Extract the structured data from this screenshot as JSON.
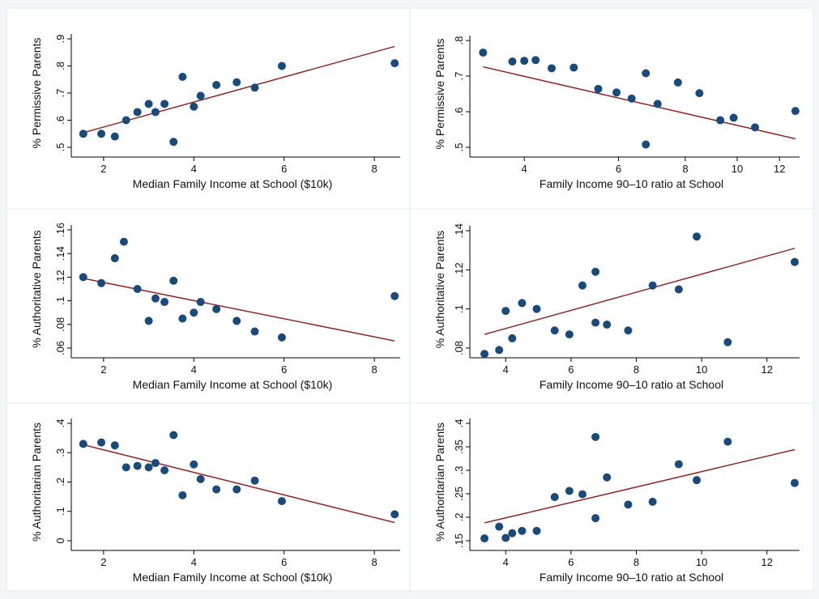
{
  "colors": {
    "point": "#1c4a78",
    "fit_line": "#8b1a1a",
    "background": "#f4f7fa",
    "panel": "#ffffff"
  },
  "chart_data": [
    {
      "type": "scatter",
      "title": "",
      "xlabel": "Median Family Income at School ($10k)",
      "ylabel": "% Permissive Parents",
      "xlim": [
        1.5,
        8.5
      ],
      "ylim": [
        0.5,
        0.9
      ],
      "xticks": [
        {
          "v": 2,
          "label": "2"
        },
        {
          "v": 4,
          "label": "4"
        },
        {
          "v": 6,
          "label": "6"
        },
        {
          "v": 8,
          "label": "8"
        }
      ],
      "yticks": [
        {
          "v": 0.5,
          "label": ".5"
        },
        {
          "v": 0.6,
          "label": ".6"
        },
        {
          "v": 0.7,
          "label": ".7"
        },
        {
          "v": 0.8,
          "label": ".8"
        },
        {
          "v": 0.9,
          "label": ".9"
        }
      ],
      "points": [
        [
          1.55,
          0.55
        ],
        [
          1.95,
          0.55
        ],
        [
          2.25,
          0.54
        ],
        [
          2.5,
          0.6
        ],
        [
          2.75,
          0.63
        ],
        [
          3.0,
          0.66
        ],
        [
          3.15,
          0.63
        ],
        [
          3.35,
          0.66
        ],
        [
          3.55,
          0.52
        ],
        [
          3.75,
          0.76
        ],
        [
          4.0,
          0.65
        ],
        [
          4.15,
          0.69
        ],
        [
          4.5,
          0.73
        ],
        [
          4.95,
          0.74
        ],
        [
          5.35,
          0.72
        ],
        [
          5.95,
          0.8
        ],
        [
          8.45,
          0.81
        ]
      ],
      "fit": [
        [
          1.55,
          0.554
        ],
        [
          8.45,
          0.872
        ]
      ],
      "grid": false,
      "legend": "none"
    },
    {
      "type": "scatter",
      "title": "",
      "xlabel": "Family Income 90–10 ratio at School",
      "ylabel": "% Permissive Parents",
      "xlim": [
        3.3,
        12.9
      ],
      "ylim": [
        0.5,
        0.8
      ],
      "xscale": "log",
      "xticks": [
        {
          "v": 4,
          "label": "4"
        },
        {
          "v": 6,
          "label": "6"
        },
        {
          "v": 8,
          "label": "8"
        },
        {
          "v": 10,
          "label": "10"
        },
        {
          "v": 12,
          "label": "12"
        }
      ],
      "yticks": [
        {
          "v": 0.5,
          "label": ".5"
        },
        {
          "v": 0.6,
          "label": ".6"
        },
        {
          "v": 0.7,
          "label": ".7"
        },
        {
          "v": 0.8,
          "label": ".8"
        }
      ],
      "points": [
        [
          3.35,
          0.766
        ],
        [
          3.8,
          0.741
        ],
        [
          4.0,
          0.743
        ],
        [
          4.2,
          0.745
        ],
        [
          4.5,
          0.722
        ],
        [
          4.95,
          0.724
        ],
        [
          5.5,
          0.664
        ],
        [
          5.95,
          0.654
        ],
        [
          6.35,
          0.637
        ],
        [
          6.75,
          0.708
        ],
        [
          6.75,
          0.508
        ],
        [
          7.1,
          0.622
        ],
        [
          7.75,
          0.682
        ],
        [
          8.5,
          0.652
        ],
        [
          9.3,
          0.576
        ],
        [
          9.85,
          0.583
        ],
        [
          10.8,
          0.556
        ],
        [
          12.85,
          0.602
        ]
      ],
      "fit": [
        [
          3.35,
          0.726
        ],
        [
          12.85,
          0.524
        ]
      ],
      "grid": false,
      "legend": "none"
    },
    {
      "type": "scatter",
      "title": "",
      "xlabel": "Median Family Income at School ($10k)",
      "ylabel": "% Authoritative Parents",
      "xlim": [
        1.5,
        8.5
      ],
      "ylim": [
        0.06,
        0.16
      ],
      "xticks": [
        {
          "v": 2,
          "label": "2"
        },
        {
          "v": 4,
          "label": "4"
        },
        {
          "v": 6,
          "label": "6"
        },
        {
          "v": 8,
          "label": "8"
        }
      ],
      "yticks": [
        {
          "v": 0.06,
          "label": ".06"
        },
        {
          "v": 0.08,
          "label": ".08"
        },
        {
          "v": 0.1,
          "label": ".1"
        },
        {
          "v": 0.12,
          "label": ".12"
        },
        {
          "v": 0.14,
          "label": ".14"
        },
        {
          "v": 0.16,
          "label": ".16"
        }
      ],
      "points": [
        [
          1.55,
          0.12
        ],
        [
          1.95,
          0.115
        ],
        [
          2.25,
          0.136
        ],
        [
          2.45,
          0.15
        ],
        [
          2.75,
          0.11
        ],
        [
          3.0,
          0.083
        ],
        [
          3.15,
          0.102
        ],
        [
          3.35,
          0.099
        ],
        [
          3.55,
          0.117
        ],
        [
          3.75,
          0.085
        ],
        [
          4.0,
          0.09
        ],
        [
          4.15,
          0.099
        ],
        [
          4.5,
          0.093
        ],
        [
          4.95,
          0.083
        ],
        [
          5.35,
          0.074
        ],
        [
          5.95,
          0.069
        ],
        [
          8.45,
          0.104
        ]
      ],
      "fit": [
        [
          1.55,
          0.119
        ],
        [
          8.45,
          0.066
        ]
      ],
      "grid": false,
      "legend": "none"
    },
    {
      "type": "scatter",
      "title": "",
      "xlabel": "Family Income 90–10 ratio at School",
      "ylabel": "% Authoritative Parents",
      "xlim": [
        3.2,
        12.9
      ],
      "ylim": [
        0.08,
        0.14
      ],
      "xticks": [
        {
          "v": 4,
          "label": "4"
        },
        {
          "v": 6,
          "label": "6"
        },
        {
          "v": 8,
          "label": "8"
        },
        {
          "v": 10,
          "label": "10"
        },
        {
          "v": 12,
          "label": "12"
        }
      ],
      "yticks": [
        {
          "v": 0.08,
          "label": ".08"
        },
        {
          "v": 0.1,
          "label": ".1"
        },
        {
          "v": 0.12,
          "label": ".12"
        },
        {
          "v": 0.14,
          "label": ".14"
        }
      ],
      "points": [
        [
          3.35,
          0.077
        ],
        [
          3.8,
          0.079
        ],
        [
          4.0,
          0.099
        ],
        [
          4.2,
          0.085
        ],
        [
          4.5,
          0.103
        ],
        [
          4.95,
          0.1
        ],
        [
          5.5,
          0.089
        ],
        [
          5.95,
          0.087
        ],
        [
          6.35,
          0.112
        ],
        [
          6.75,
          0.119
        ],
        [
          6.75,
          0.093
        ],
        [
          7.1,
          0.092
        ],
        [
          7.75,
          0.089
        ],
        [
          8.5,
          0.112
        ],
        [
          9.3,
          0.11
        ],
        [
          9.85,
          0.137
        ],
        [
          10.8,
          0.083
        ],
        [
          12.85,
          0.124
        ]
      ],
      "fit": [
        [
          3.35,
          0.087
        ],
        [
          12.85,
          0.131
        ]
      ],
      "grid": false,
      "legend": "none"
    },
    {
      "type": "scatter",
      "title": "",
      "xlabel": "Median Family Income at School ($10k)",
      "ylabel": "% Authoritarian Parents",
      "xlim": [
        1.5,
        8.5
      ],
      "ylim": [
        0.0,
        0.4
      ],
      "xticks": [
        {
          "v": 2,
          "label": "2"
        },
        {
          "v": 4,
          "label": "4"
        },
        {
          "v": 6,
          "label": "6"
        },
        {
          "v": 8,
          "label": "8"
        }
      ],
      "yticks": [
        {
          "v": 0.0,
          "label": "0"
        },
        {
          "v": 0.1,
          "label": ".1"
        },
        {
          "v": 0.2,
          "label": ".2"
        },
        {
          "v": 0.3,
          "label": ".3"
        },
        {
          "v": 0.4,
          "label": ".4"
        }
      ],
      "points": [
        [
          1.55,
          0.33
        ],
        [
          1.95,
          0.335
        ],
        [
          2.25,
          0.325
        ],
        [
          2.5,
          0.25
        ],
        [
          2.75,
          0.255
        ],
        [
          3.0,
          0.25
        ],
        [
          3.15,
          0.265
        ],
        [
          3.35,
          0.24
        ],
        [
          3.55,
          0.36
        ],
        [
          3.75,
          0.155
        ],
        [
          4.0,
          0.26
        ],
        [
          4.15,
          0.21
        ],
        [
          4.5,
          0.175
        ],
        [
          4.95,
          0.175
        ],
        [
          5.35,
          0.205
        ],
        [
          5.95,
          0.135
        ],
        [
          8.45,
          0.09
        ]
      ],
      "fit": [
        [
          1.55,
          0.327
        ],
        [
          8.45,
          0.062
        ]
      ],
      "grid": false,
      "legend": "none"
    },
    {
      "type": "scatter",
      "title": "",
      "xlabel": "Family Income 90–10 ratio at School",
      "ylabel": "% Authoritarian Parents",
      "xlim": [
        3.2,
        12.9
      ],
      "ylim": [
        0.15,
        0.4
      ],
      "xticks": [
        {
          "v": 4,
          "label": "4"
        },
        {
          "v": 6,
          "label": "6"
        },
        {
          "v": 8,
          "label": "8"
        },
        {
          "v": 10,
          "label": "10"
        },
        {
          "v": 12,
          "label": "12"
        }
      ],
      "yticks": [
        {
          "v": 0.15,
          "label": ".15"
        },
        {
          "v": 0.2,
          "label": ".2"
        },
        {
          "v": 0.25,
          "label": ".25"
        },
        {
          "v": 0.3,
          "label": ".3"
        },
        {
          "v": 0.35,
          "label": ".35"
        },
        {
          "v": 0.4,
          "label": ".4"
        }
      ],
      "points": [
        [
          3.35,
          0.155
        ],
        [
          3.8,
          0.18
        ],
        [
          4.0,
          0.156
        ],
        [
          4.2,
          0.166
        ],
        [
          4.5,
          0.171
        ],
        [
          4.95,
          0.171
        ],
        [
          5.5,
          0.243
        ],
        [
          5.95,
          0.256
        ],
        [
          6.35,
          0.249
        ],
        [
          6.75,
          0.371
        ],
        [
          6.75,
          0.198
        ],
        [
          7.1,
          0.285
        ],
        [
          7.75,
          0.227
        ],
        [
          8.5,
          0.233
        ],
        [
          9.3,
          0.313
        ],
        [
          9.85,
          0.279
        ],
        [
          10.8,
          0.361
        ],
        [
          12.85,
          0.273
        ]
      ],
      "fit": [
        [
          3.35,
          0.188
        ],
        [
          12.85,
          0.344
        ]
      ],
      "grid": false,
      "legend": "none"
    }
  ]
}
